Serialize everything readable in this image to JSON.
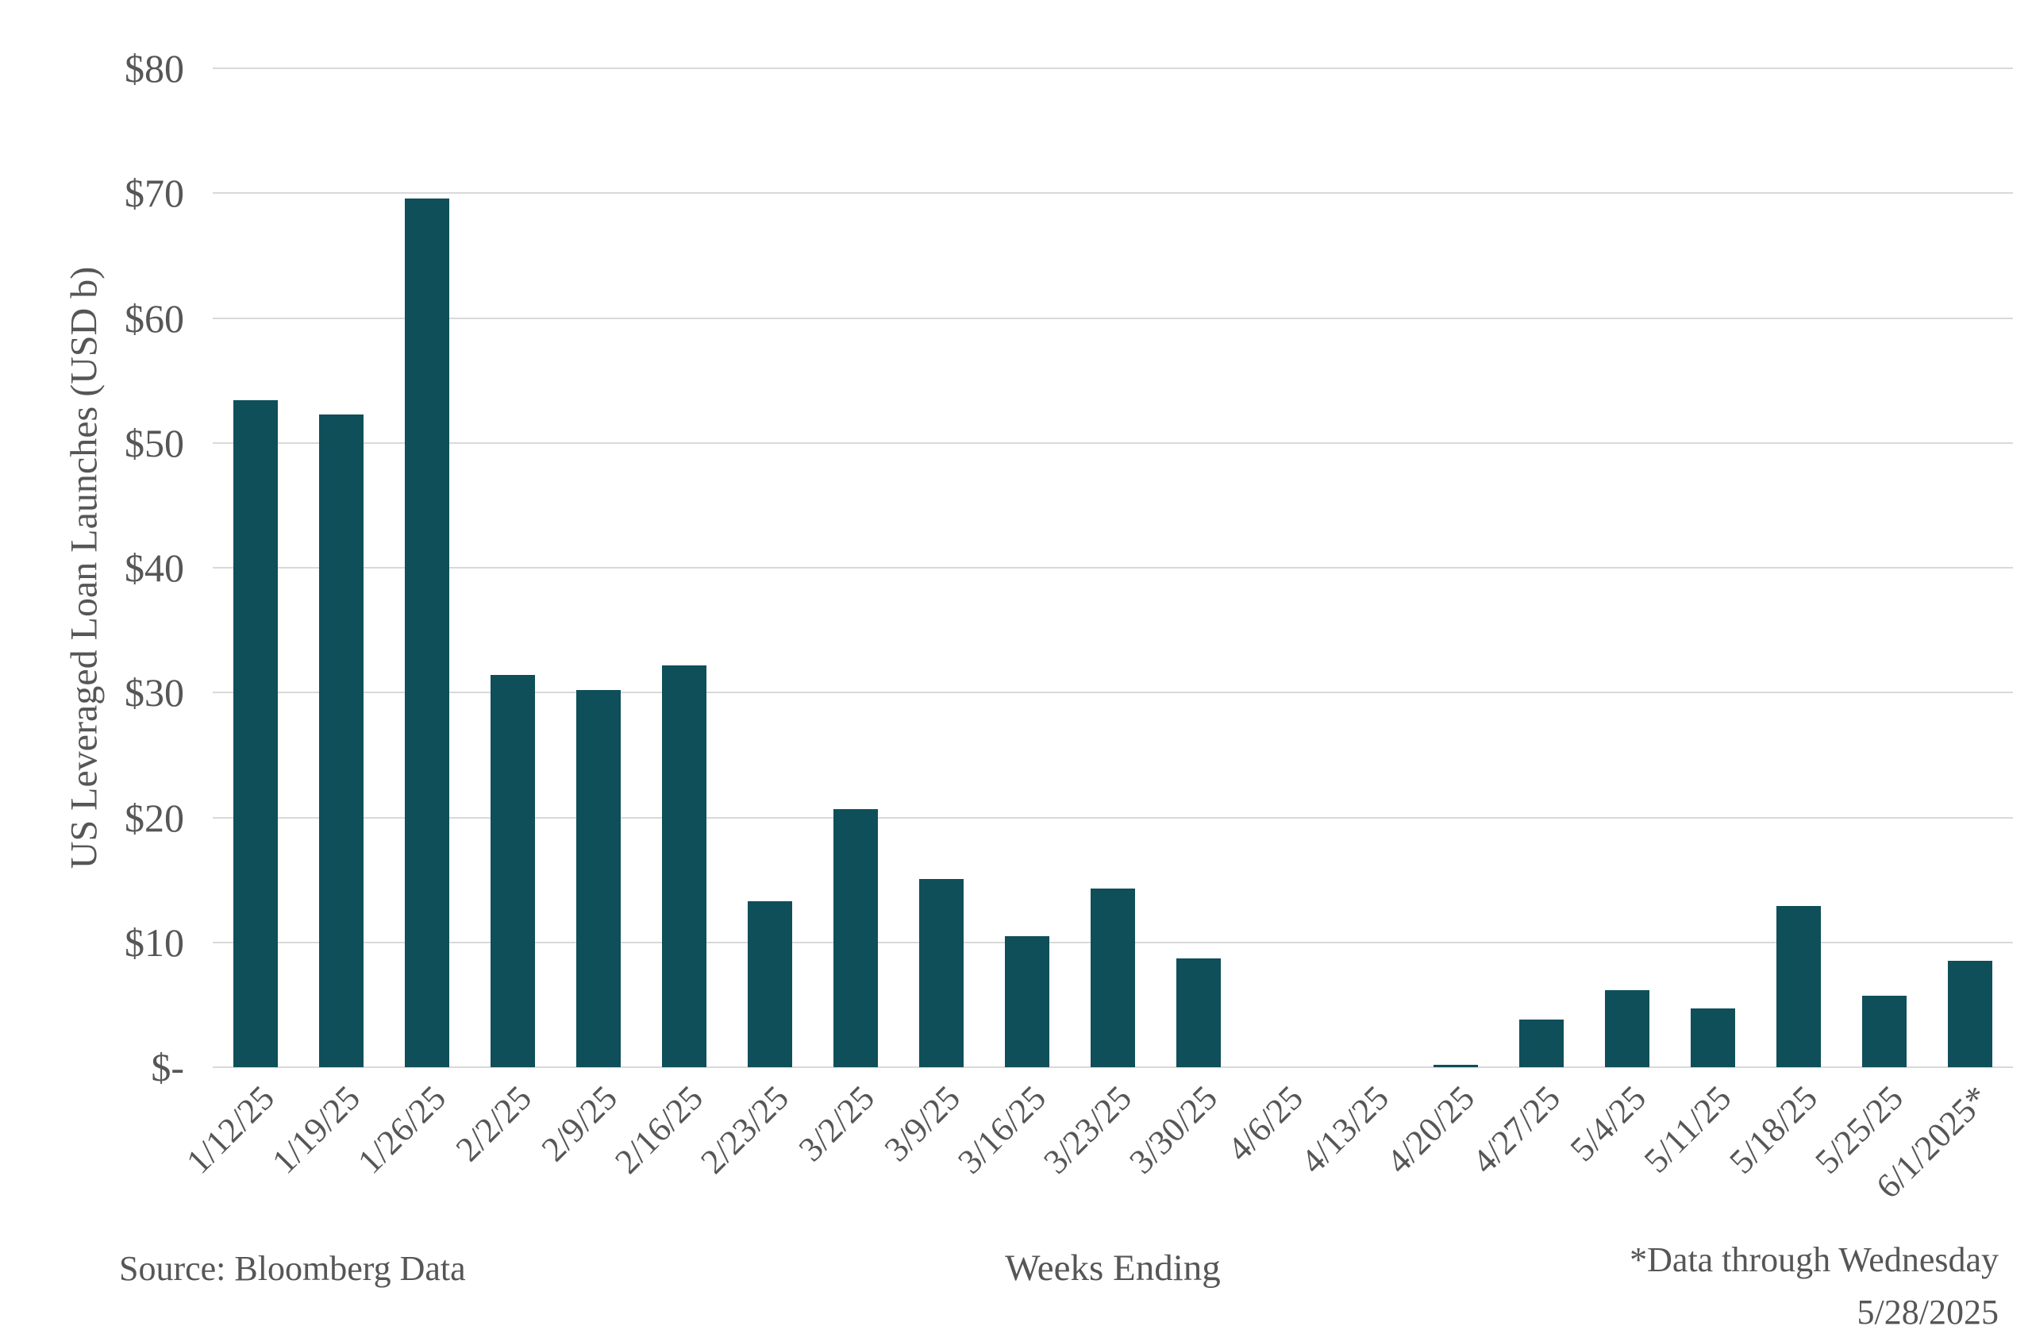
{
  "chart_data": {
    "type": "bar",
    "title": "",
    "xlabel": "Weeks Ending",
    "ylabel": "US Leveraged Loan Launches (USD b)",
    "ylim": [
      0,
      80
    ],
    "y_tick_step": 10,
    "y_tick_labels": [
      "$-",
      "$10",
      "$20",
      "$30",
      "$40",
      "$50",
      "$60",
      "$70",
      "$80"
    ],
    "categories": [
      "1/12/25",
      "1/19/25",
      "1/26/25",
      "2/2/25",
      "2/9/25",
      "2/16/25",
      "2/23/25",
      "3/2/25",
      "3/9/25",
      "3/16/25",
      "3/23/25",
      "3/30/25",
      "4/6/25",
      "4/13/25",
      "4/20/25",
      "4/27/25",
      "5/4/25",
      "5/11/25",
      "5/18/25",
      "5/25/25",
      "6/1/2025*"
    ],
    "values": [
      53.4,
      52.3,
      69.6,
      31.4,
      30.2,
      32.2,
      13.3,
      20.7,
      15.1,
      10.5,
      14.3,
      8.7,
      0,
      0,
      0.2,
      3.8,
      6.2,
      4.7,
      12.9,
      5.7,
      8.5
    ],
    "grid": true,
    "legend": false,
    "bar_color": "#0e4f5a",
    "gridline_color": "#d9d9d9",
    "text_color": "#565656"
  },
  "footer": {
    "source": "Source: Bloomberg Data",
    "note_line1": "*Data through Wednesday",
    "note_line2": "5/28/2025"
  }
}
